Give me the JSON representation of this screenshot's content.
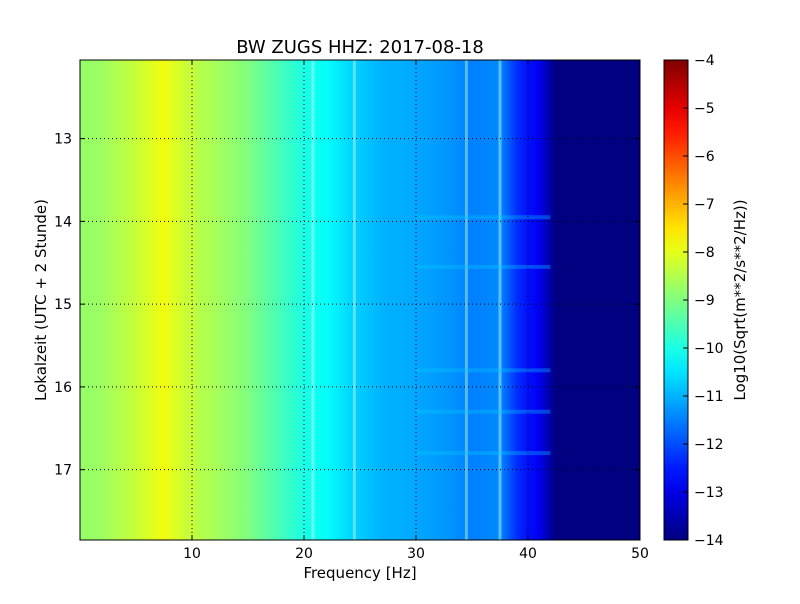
{
  "chart_data": {
    "type": "heatmap",
    "title": "BW ZUGS HHZ: 2017-08-18",
    "xlabel": "Frequency [Hz]",
    "ylabel": "Lokalzeit (UTC + 2 Stunde)",
    "xlim": [
      0,
      50
    ],
    "ylim": [
      12.05,
      17.85
    ],
    "y_inverted": true,
    "grid": true,
    "x_ticks": [
      10,
      20,
      30,
      40,
      50
    ],
    "x_tick_labels": [
      "10",
      "20",
      "30",
      "40",
      "50"
    ],
    "y_ticks": [
      13,
      14,
      15,
      16,
      17
    ],
    "y_tick_labels": [
      "13",
      "14",
      "15",
      "16",
      "17"
    ],
    "colorbar": {
      "label": "Log10(Sqrt(m**2/s**2/Hz))",
      "range": [
        -14,
        -4
      ],
      "ticks": [
        -4,
        -5,
        -6,
        -7,
        -8,
        -9,
        -10,
        -11,
        -12,
        -13,
        -14
      ],
      "tick_labels": [
        "−4",
        "−5",
        "−6",
        "−7",
        "−8",
        "−9",
        "−10",
        "−11",
        "−12",
        "−13",
        "−14"
      ],
      "colormap": "jet"
    },
    "series": [
      {
        "frequency_hz": [
          0,
          2,
          5,
          7.5,
          10,
          12,
          15,
          18,
          20,
          22,
          24.5,
          27,
          30,
          33,
          35,
          37.5,
          39,
          40,
          41,
          42.5,
          45,
          50
        ],
        "log10_amplitude": [
          -8.8,
          -8.7,
          -8.3,
          -7.9,
          -8.4,
          -8.6,
          -9.0,
          -9.6,
          -10.0,
          -10.2,
          -10.7,
          -11.0,
          -11.1,
          -11.3,
          -11.5,
          -11.4,
          -12.3,
          -12.6,
          -12.9,
          -14.0,
          -14.0,
          -14.0
        ]
      }
    ],
    "features": {
      "lines_hz": [
        7.5,
        10,
        20.8,
        24.5,
        34.5,
        37.5
      ],
      "bright_time_bands": [
        13.95,
        14.55,
        15.8,
        16.3,
        16.8
      ]
    }
  }
}
